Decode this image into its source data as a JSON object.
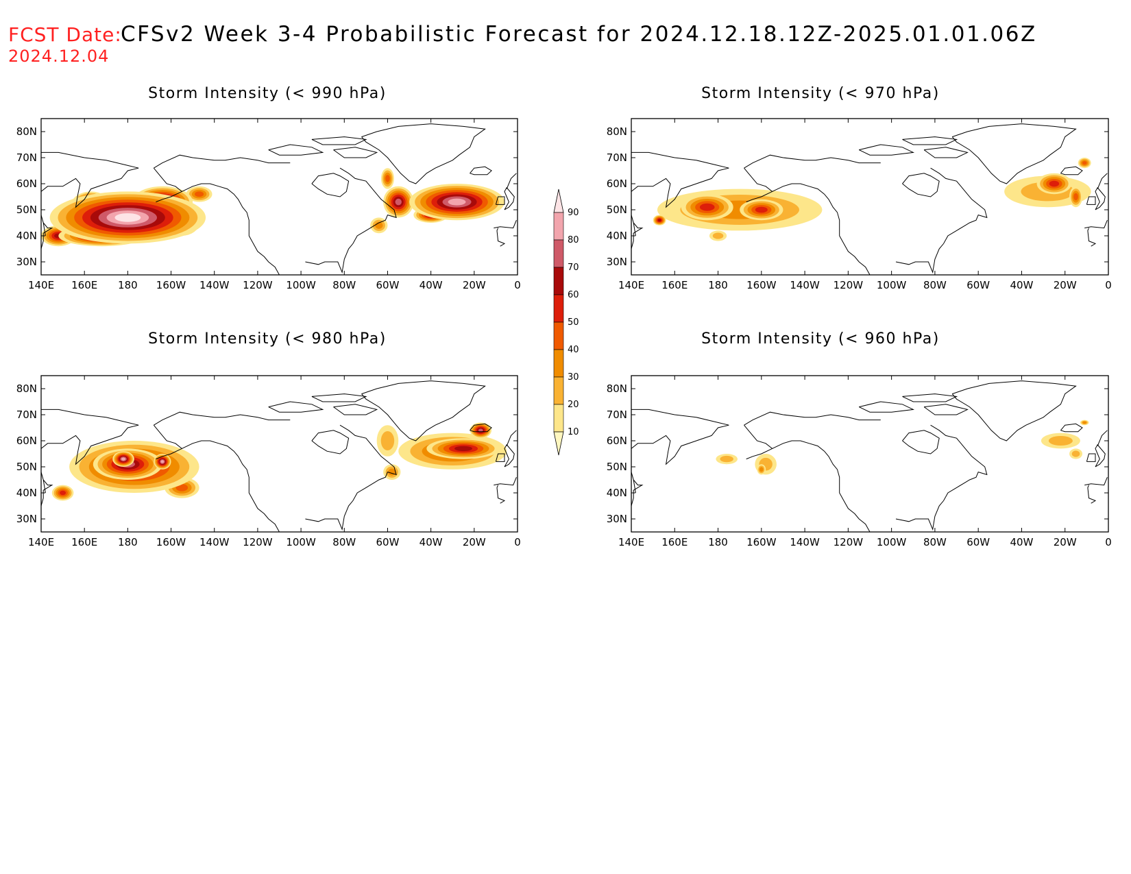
{
  "header": {
    "fcst_label": "FCST Date:",
    "fcst_date": "2024.12.04",
    "title": "CFSv2 Week 3-4 Probabilistic Forecast for 2024.12.18.12Z-2025.01.01.06Z"
  },
  "axes": {
    "lon_labels": [
      "140E",
      "160E",
      "180",
      "160W",
      "140W",
      "120W",
      "100W",
      "80W",
      "60W",
      "40W",
      "20W",
      "0"
    ],
    "lat_labels": [
      "80N",
      "70N",
      "60N",
      "50N",
      "40N",
      "30N"
    ]
  },
  "colorbar": {
    "levels": [
      "10",
      "20",
      "30",
      "40",
      "50",
      "60",
      "70",
      "80",
      "90"
    ],
    "colors": [
      "#fff7c0",
      "#fde68a",
      "#f9b233",
      "#f08c00",
      "#f05a00",
      "#dd1e0a",
      "#a80a0a",
      "#cf5a68",
      "#f2a5ad",
      "#fde4e6"
    ]
  },
  "panels": [
    {
      "id": "p990",
      "title": "Storm Intensity (< 990 hPa)",
      "blobs": [
        {
          "lon": 180,
          "lat": 47,
          "rlon": 36,
          "rlat": 10,
          "p": 90
        },
        {
          "lon": 163,
          "lat": 52,
          "rlon": 9,
          "rlat": 5,
          "p": 80
        },
        {
          "lon": 196,
          "lat": 53,
          "rlon": 14,
          "rlat": 6,
          "p": 80
        },
        {
          "lon": 168,
          "lat": 40,
          "rlon": 20,
          "rlat": 4,
          "p": 70
        },
        {
          "lon": 148,
          "lat": 40,
          "rlon": 8,
          "rlat": 4,
          "p": 60
        },
        {
          "lon": 205,
          "lat": 45,
          "rlon": 8,
          "rlat": 5,
          "p": 70
        },
        {
          "lon": 213,
          "lat": 56,
          "rlon": 6,
          "rlat": 3,
          "p": 40
        },
        {
          "lon": 305,
          "lat": 53,
          "rlon": 7,
          "rlat": 6,
          "p": 70
        },
        {
          "lon": 332,
          "lat": 53,
          "rlon": 22,
          "rlat": 7,
          "p": 80
        },
        {
          "lon": 320,
          "lat": 48,
          "rlon": 8,
          "rlat": 3,
          "p": 60
        },
        {
          "lon": 300,
          "lat": 62,
          "rlon": 3,
          "rlat": 4,
          "p": 40
        },
        {
          "lon": 296,
          "lat": 44,
          "rlon": 4,
          "rlat": 3,
          "p": 30
        }
      ]
    },
    {
      "id": "p970",
      "title": "Storm Intensity (< 970 hPa)",
      "blobs": [
        {
          "lon": 190,
          "lat": 50,
          "rlon": 38,
          "rlat": 8,
          "p": 30
        },
        {
          "lon": 175,
          "lat": 51,
          "rlon": 12,
          "rlat": 5,
          "p": 50
        },
        {
          "lon": 200,
          "lat": 50,
          "rlon": 10,
          "rlat": 4,
          "p": 50
        },
        {
          "lon": 153,
          "lat": 46,
          "rlon": 3,
          "rlat": 2,
          "p": 60
        },
        {
          "lon": 180,
          "lat": 40,
          "rlon": 4,
          "rlat": 2,
          "p": 20
        },
        {
          "lon": 332,
          "lat": 57,
          "rlon": 20,
          "rlat": 6,
          "p": 20
        },
        {
          "lon": 335,
          "lat": 60,
          "rlon": 8,
          "rlat": 4,
          "p": 50
        },
        {
          "lon": 345,
          "lat": 55,
          "rlon": 3,
          "rlat": 4,
          "p": 40
        },
        {
          "lon": 349,
          "lat": 68,
          "rlon": 3,
          "rlat": 2,
          "p": 40
        }
      ]
    },
    {
      "id": "p980",
      "title": "Storm Intensity (< 980 hPa)",
      "blobs": [
        {
          "lon": 183,
          "lat": 50,
          "rlon": 30,
          "rlat": 10,
          "p": 60
        },
        {
          "lon": 180,
          "lat": 51,
          "rlon": 16,
          "rlat": 6,
          "p": 70
        },
        {
          "lon": 178,
          "lat": 53,
          "rlon": 5,
          "rlat": 3,
          "p": 80
        },
        {
          "lon": 196,
          "lat": 52,
          "rlon": 4,
          "rlat": 3,
          "p": 80
        },
        {
          "lon": 150,
          "lat": 40,
          "rlon": 5,
          "rlat": 3,
          "p": 50
        },
        {
          "lon": 205,
          "lat": 42,
          "rlon": 8,
          "rlat": 4,
          "p": 40
        },
        {
          "lon": 330,
          "lat": 56,
          "rlon": 25,
          "rlat": 7,
          "p": 40
        },
        {
          "lon": 335,
          "lat": 57,
          "rlon": 17,
          "rlat": 4,
          "p": 60
        },
        {
          "lon": 343,
          "lat": 64,
          "rlon": 5,
          "rlat": 3,
          "p": 70
        },
        {
          "lon": 300,
          "lat": 60,
          "rlon": 5,
          "rlat": 6,
          "p": 20
        },
        {
          "lon": 302,
          "lat": 48,
          "rlon": 4,
          "rlat": 3,
          "p": 30
        }
      ]
    },
    {
      "id": "p960",
      "title": "Storm Intensity (< 960 hPa)",
      "blobs": [
        {
          "lon": 184,
          "lat": 53,
          "rlon": 5,
          "rlat": 2,
          "p": 20
        },
        {
          "lon": 202,
          "lat": 51,
          "rlon": 5,
          "rlat": 4,
          "p": 20
        },
        {
          "lon": 200,
          "lat": 49,
          "rlon": 2,
          "rlat": 2,
          "p": 30
        },
        {
          "lon": 338,
          "lat": 60,
          "rlon": 9,
          "rlat": 3,
          "p": 20
        },
        {
          "lon": 345,
          "lat": 55,
          "rlon": 3,
          "rlat": 2,
          "p": 20
        },
        {
          "lon": 349,
          "lat": 67,
          "rlon": 2,
          "rlat": 1,
          "p": 30
        }
      ]
    }
  ]
}
